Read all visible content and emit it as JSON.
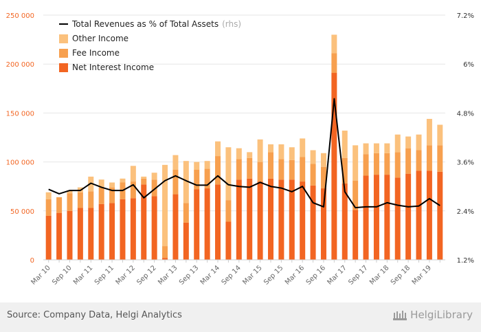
{
  "chart_data": {
    "type": "bar",
    "categories": [
      "Mar 10",
      "Jun 10",
      "Sep 10",
      "Dec 10",
      "Mar 11",
      "Jun 11",
      "Sep 11",
      "Dec 11",
      "Mar 12",
      "Jun 12",
      "Sep 12",
      "Dec 12",
      "Mar 13",
      "Jun 13",
      "Sep 13",
      "Dec 13",
      "Mar 14",
      "Jun 14",
      "Sep 14",
      "Dec 14",
      "Mar 15",
      "Jun 15",
      "Sep 15",
      "Dec 15",
      "Mar 16",
      "Jun 16",
      "Sep 16",
      "Dec 16",
      "Mar 17",
      "Jun 17",
      "Sep 17",
      "Dec 17",
      "Mar 18",
      "Jun 18",
      "Sep 18",
      "Dec 18",
      "Mar 19",
      "Jun 19"
    ],
    "x_tick_labels": [
      "Mar 10",
      "Sep 10",
      "Mar 11",
      "Sep 11",
      "Mar 12",
      "Sep 12",
      "Mar 13",
      "Sep 13",
      "Mar 14",
      "Sep 14",
      "Mar 15",
      "Sep 15",
      "Mar 16",
      "Sep 16",
      "Mar 17",
      "Sep 17",
      "Mar 18",
      "Sep 18",
      "Mar 19"
    ],
    "series": [
      {
        "name": "Net Interest Income",
        "color": "#f26522",
        "values": [
          45000,
          48000,
          50000,
          53000,
          53000,
          57000,
          58000,
          62000,
          63000,
          77000,
          65000,
          2000,
          67000,
          38000,
          72000,
          73000,
          77000,
          39000,
          82000,
          83000,
          80000,
          83000,
          82000,
          82000,
          80000,
          76000,
          73000,
          191000,
          78000,
          51000,
          86000,
          87000,
          87000,
          84000,
          88000,
          91000,
          91000,
          90000
        ]
      },
      {
        "name": "Fee Income",
        "color": "#f7a04f",
        "values": [
          17000,
          16000,
          18000,
          16000,
          17000,
          17000,
          16000,
          17000,
          17000,
          6000,
          17000,
          12000,
          25000,
          20000,
          20000,
          20000,
          29000,
          22000,
          21000,
          21000,
          20000,
          27000,
          21000,
          20000,
          25000,
          22000,
          22000,
          20000,
          26000,
          30000,
          22000,
          22000,
          22000,
          26000,
          26000,
          21000,
          26000,
          27000
        ]
      },
      {
        "name": "Other Income",
        "color": "#fbc17d",
        "values": [
          7000,
          0,
          3000,
          5000,
          15000,
          8000,
          5000,
          4000,
          16000,
          2000,
          7000,
          83000,
          15000,
          43000,
          8000,
          8000,
          15000,
          54000,
          11000,
          6000,
          23000,
          8000,
          15000,
          13000,
          19000,
          14000,
          14000,
          19000,
          28000,
          36000,
          11000,
          10000,
          10000,
          18000,
          12000,
          16000,
          27000,
          21000
        ]
      },
      {
        "name": "Total Revenues as % of Total Assets",
        "axis": "rhs",
        "color": "#000000",
        "values": [
          2.93,
          2.82,
          2.9,
          2.9,
          3.08,
          2.98,
          2.9,
          2.9,
          3.04,
          2.72,
          2.93,
          3.14,
          3.26,
          3.14,
          3.03,
          3.03,
          3.26,
          3.04,
          3.0,
          2.98,
          3.1,
          3.0,
          2.96,
          2.87,
          3.0,
          2.6,
          2.5,
          5.15,
          2.87,
          2.48,
          2.5,
          2.5,
          2.6,
          2.54,
          2.5,
          2.52,
          2.7,
          2.53
        ]
      }
    ],
    "legend_labels": [
      "Total Revenues as % of Total Assets",
      "Other Income",
      "Fee Income",
      "Net Interest Income"
    ],
    "legend_suffix": "(rhs)",
    "y_left": {
      "ticks": [
        "0",
        "50 000",
        "100 000",
        "150 000",
        "200 000",
        "250 000"
      ],
      "range": [
        0,
        250000
      ],
      "tick_color": "#f26522"
    },
    "y_right": {
      "ticks": [
        "1.2%",
        "2.4%",
        "3.6%",
        "4.8%",
        "6%",
        "7.2%"
      ],
      "range": [
        1.2,
        7.2
      ]
    },
    "grid": true,
    "legend_position": "top-left"
  },
  "footer": {
    "source": "Source: Company Data, Helgi Analytics",
    "logo_text": "HelgiLibrary"
  }
}
